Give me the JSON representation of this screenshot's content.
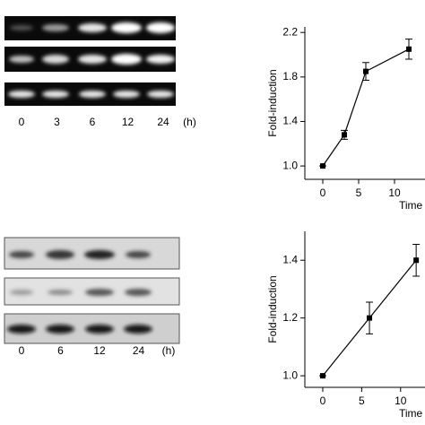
{
  "gels": [
    {
      "lanes": [
        "0",
        "3",
        "6",
        "12",
        "24"
      ],
      "unit": "(h)"
    },
    {
      "lanes": [
        "0",
        "6",
        "12",
        "24"
      ],
      "unit": "(h)"
    }
  ],
  "chart_data": [
    {
      "type": "line",
      "y_label": "Fold-induction",
      "x_label": "Time",
      "x": [
        0,
        3,
        6,
        12
      ],
      "series": [
        {
          "color": "#000000",
          "values": [
            1.0,
            1.28,
            1.85,
            2.05
          ],
          "errors": [
            0,
            0.04,
            0.08,
            0.09
          ]
        }
      ],
      "xlim": [
        -2.5,
        25
      ],
      "ylim": [
        0.88,
        2.25
      ],
      "xticks": [
        0,
        5,
        10
      ],
      "yticks": [
        {
          "value": 1,
          "label": "1.0"
        },
        1.4,
        1.8,
        2.2
      ]
    },
    {
      "type": "line",
      "y_label": "Fold-induction",
      "x_label": "Time",
      "x": [
        0,
        6,
        12
      ],
      "series": [
        {
          "color": "#000000",
          "values": [
            1.0,
            1.2,
            1.4
          ],
          "errors": [
            0,
            0.055,
            0.055
          ]
        }
      ],
      "xlim": [
        -2.3,
        25
      ],
      "ylim": [
        0.96,
        1.5
      ],
      "xticks": [
        0,
        5,
        10
      ],
      "yticks": [
        {
          "value": 1,
          "label": "1.0"
        },
        1.2,
        1.4
      ]
    }
  ]
}
